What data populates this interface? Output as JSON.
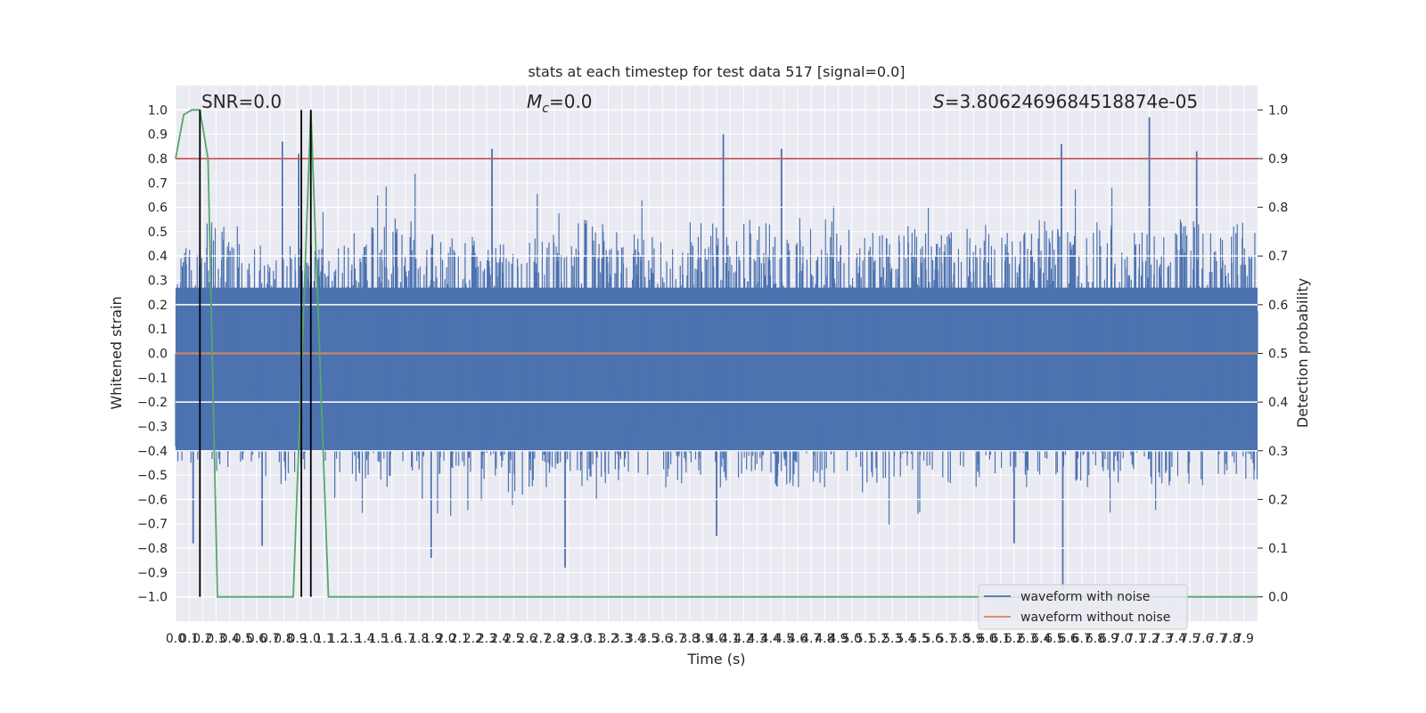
{
  "chart_data": {
    "type": "line",
    "title": "stats at each timestep for test data 517 [signal=0.0]",
    "xlabel": "Time (s)",
    "ylabel": "Whitened strain",
    "ylabel_right": "Detection probability",
    "xlim": [
      0.0,
      8.0
    ],
    "ylim": [
      -1.1,
      1.1
    ],
    "ylim_right": [
      -0.05,
      1.05
    ],
    "x_tick_step": 0.1,
    "x_tick_count": 80,
    "y_ticks": [
      -1.0,
      -0.9,
      -0.8,
      -0.7,
      -0.6,
      -0.5,
      -0.4,
      -0.3,
      -0.2,
      -0.1,
      0.0,
      0.1,
      0.2,
      0.3,
      0.4,
      0.5,
      0.6,
      0.7,
      0.8,
      0.9,
      1.0
    ],
    "y_ticks_right": [
      0.0,
      0.1,
      0.2,
      0.3,
      0.4,
      0.5,
      0.6,
      0.7,
      0.8,
      0.9,
      1.0
    ],
    "grid": true,
    "legend_position": "lower-right",
    "annotations": {
      "snr": "SNR=0.0",
      "mc_symbol": "M",
      "mc_sub": "c",
      "mc_value": "=0.0",
      "s_symbol": "S",
      "s_value": "=3.8062469684518874e-05"
    },
    "series": [
      {
        "name": "waveform with noise",
        "color": "#4c72b0",
        "axis": "left",
        "envelope_upper": [
          0.45,
          0.55,
          0.45,
          0.4,
          0.45,
          0.5,
          0.45,
          0.6,
          0.55,
          0.5,
          0.5,
          0.45,
          0.45,
          0.5,
          0.45,
          0.55,
          0.5,
          0.5,
          0.45,
          0.55,
          0.5,
          0.55,
          0.5,
          0.5,
          0.55,
          0.5,
          0.5,
          0.55,
          0.5,
          0.55,
          0.5,
          0.5,
          0.55,
          0.5,
          0.55,
          0.5,
          0.5,
          0.55,
          0.5,
          0.55
        ],
        "envelope_lower": [
          -0.45,
          -0.5,
          -0.45,
          -0.45,
          -0.5,
          -0.45,
          -0.5,
          -0.55,
          -0.5,
          -0.5,
          -0.5,
          -0.55,
          -0.5,
          -0.55,
          -0.5,
          -0.55,
          -0.55,
          -0.5,
          -0.55,
          -0.5,
          -0.55,
          -0.5,
          -0.55,
          -0.55,
          -0.5,
          -0.55,
          -0.55,
          -0.5,
          -0.55,
          -0.55,
          -0.5,
          -0.55,
          -0.5,
          -0.55,
          -0.55,
          -0.5,
          -0.55,
          -0.55,
          -0.5,
          -0.55
        ],
        "peaks": [
          {
            "x": 1.89,
            "y": -0.84
          },
          {
            "x": 2.88,
            "y": -0.88
          },
          {
            "x": 2.34,
            "y": 0.84
          },
          {
            "x": 4.05,
            "y": 0.9
          },
          {
            "x": 4.48,
            "y": 0.84
          },
          {
            "x": 6.55,
            "y": 0.86
          },
          {
            "x": 6.56,
            "y": -0.97
          },
          {
            "x": 7.2,
            "y": 0.97
          },
          {
            "x": 7.55,
            "y": 0.83
          },
          {
            "x": 0.79,
            "y": 0.87
          },
          {
            "x": 0.91,
            "y": 0.82
          },
          {
            "x": 0.13,
            "y": -0.78
          },
          {
            "x": 0.64,
            "y": -0.79
          },
          {
            "x": 4.0,
            "y": -0.75
          },
          {
            "x": 6.2,
            "y": -0.78
          }
        ]
      },
      {
        "name": "waveform without noise",
        "color": "#dd8452",
        "axis": "left",
        "x": [
          0.0,
          8.0
        ],
        "y": [
          0.0,
          0.0
        ]
      },
      {
        "color": "#55a868",
        "axis": "right",
        "x": [
          0.0,
          0.06,
          0.12,
          0.18,
          0.24,
          0.31,
          0.87,
          1.0,
          1.13,
          8.0
        ],
        "y": [
          0.9,
          0.99,
          1.0,
          1.0,
          0.9,
          0.0,
          0.0,
          1.0,
          0.0,
          0.0
        ]
      }
    ],
    "threshold": {
      "axis": "right",
      "value": 0.9,
      "color": "#c44e52"
    },
    "vertical_markers": {
      "x": [
        0.18,
        0.93,
        1.0
      ],
      "y_top": 1.0,
      "y_bottom": 0.0,
      "color": "#000000"
    }
  }
}
